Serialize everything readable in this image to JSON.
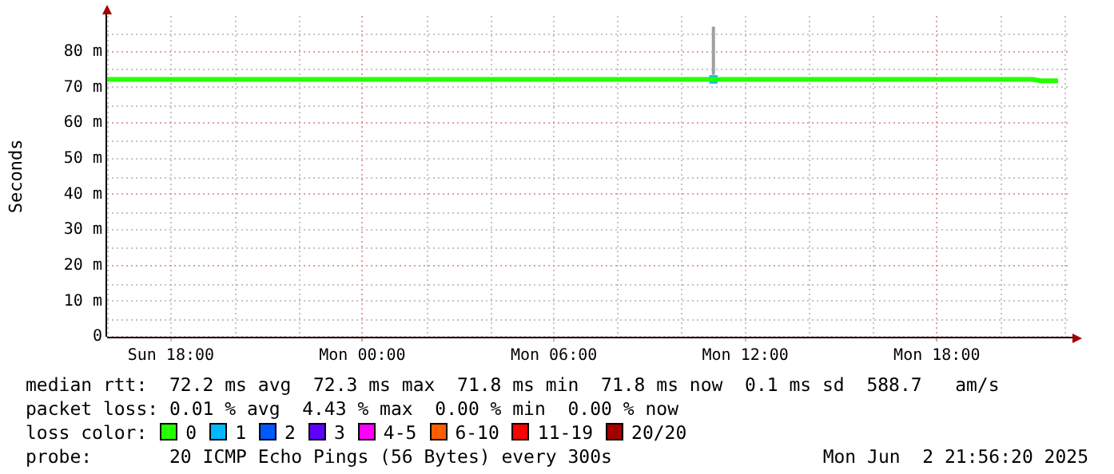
{
  "chart_data": {
    "type": "line",
    "ylabel": "Seconds",
    "legend_title": "loss color:",
    "legend": "bottom",
    "grid": true,
    "marker": "none",
    "line_style": "solid",
    "xlim": [
      "2025-06-01T16:00",
      "2025-06-02T22:12"
    ],
    "ylim": [
      0,
      90
    ],
    "xticks": [
      {
        "value": "2025-06-01T16:00",
        "label": null
      },
      {
        "value": "2025-06-01T18:00",
        "label": "Sun 18:00"
      },
      {
        "value": "2025-06-01T20:00",
        "label": null
      },
      {
        "value": "2025-06-01T22:00",
        "label": null
      },
      {
        "value": "2025-06-02T00:00",
        "label": "Mon 00:00"
      },
      {
        "value": "2025-06-02T02:00",
        "label": null
      },
      {
        "value": "2025-06-02T04:00",
        "label": null
      },
      {
        "value": "2025-06-02T06:00",
        "label": "Mon 06:00"
      },
      {
        "value": "2025-06-02T08:00",
        "label": null
      },
      {
        "value": "2025-06-02T10:00",
        "label": null
      },
      {
        "value": "2025-06-02T12:00",
        "label": "Mon 12:00"
      },
      {
        "value": "2025-06-02T14:00",
        "label": null
      },
      {
        "value": "2025-06-02T16:00",
        "label": null
      },
      {
        "value": "2025-06-02T18:00",
        "label": "Mon 18:00"
      },
      {
        "value": "2025-06-02T20:00",
        "label": null
      },
      {
        "value": "2025-06-02T22:00",
        "label": null
      }
    ],
    "yticks": [
      0,
      {
        "value": 5,
        "label": null
      },
      {
        "value": 10,
        "label": "10 m"
      },
      {
        "value": 15,
        "label": null
      },
      {
        "value": 20,
        "label": "20 m"
      },
      {
        "value": 25,
        "label": null
      },
      {
        "value": 30,
        "label": "30 m"
      },
      {
        "value": 35,
        "label": null
      },
      {
        "value": 40,
        "label": "40 m"
      },
      {
        "value": 45,
        "label": null
      },
      {
        "value": 50,
        "label": "50 m"
      },
      {
        "value": 55,
        "label": null
      },
      {
        "value": 60,
        "label": "60 m"
      },
      {
        "value": 65,
        "label": null
      },
      {
        "value": 70,
        "label": "70 m"
      },
      {
        "value": 75,
        "label": null
      },
      {
        "value": 80,
        "label": "80 m"
      },
      {
        "value": 85,
        "label": null
      }
    ],
    "series": [
      {
        "name": "0",
        "color": "#26ff00",
        "x": [
          "2025-06-01T16:00",
          "2025-06-01T17:00",
          "2025-06-01T18:00",
          "2025-06-01T19:00",
          "2025-06-01T20:00",
          "2025-06-01T21:00",
          "2025-06-01T22:00",
          "2025-06-01T23:00",
          "2025-06-02T00:00",
          "2025-06-02T01:00",
          "2025-06-02T02:00",
          "2025-06-02T03:00",
          "2025-06-02T04:00",
          "2025-06-02T05:00",
          "2025-06-02T06:00",
          "2025-06-02T07:00",
          "2025-06-02T08:00",
          "2025-06-02T09:00",
          "2025-06-02T10:00",
          "2025-06-02T11:00",
          "2025-06-02T12:00",
          "2025-06-02T13:00",
          "2025-06-02T14:00",
          "2025-06-02T15:00",
          "2025-06-02T16:00",
          "2025-06-02T17:00",
          "2025-06-02T18:00",
          "2025-06-02T19:00",
          "2025-06-02T20:00",
          "2025-06-02T21:00",
          "2025-06-02T21:15",
          "2025-06-02T21:48"
        ],
        "values": [
          72.2,
          72.2,
          72.2,
          72.2,
          72.2,
          72.2,
          72.2,
          72.2,
          72.2,
          72.2,
          72.2,
          72.2,
          72.2,
          72.2,
          72.2,
          72.2,
          72.2,
          72.2,
          72.2,
          72.2,
          72.2,
          72.2,
          72.2,
          72.2,
          72.2,
          72.2,
          72.2,
          72.2,
          72.2,
          72.2,
          71.8,
          71.8
        ]
      },
      {
        "color": "#a0a0a0",
        "x": [
          "2025-06-02T11:00",
          "2025-06-02T11:00"
        ],
        "values": [
          73.5,
          87
        ]
      },
      {
        "name": "1",
        "color": "#00b8ff",
        "marker": "square",
        "x": [
          "2025-06-02T11:00"
        ],
        "values": [
          72.2
        ]
      },
      {
        "name": "2",
        "color": "#0059ff"
      },
      {
        "name": "3",
        "color": "#5e00ff"
      },
      {
        "name": "4-5",
        "color": "#ff00ff"
      },
      {
        "name": "6-10",
        "color": "#ff5e00"
      },
      {
        "name": "11-19",
        "color": "#ff0000"
      },
      {
        "name": "20/20",
        "color": "#a10000"
      }
    ],
    "annotations": [
      "median rtt:  72.2 ms avg  72.3 ms max  71.8 ms min  71.8 ms now  0.1 ms sd  588.7   am/s",
      "packet loss: 0.01 % avg  4.43 % max  0.00 % min  0.00 % now",
      "probe:       20 ICMP Echo Pings (56 Bytes) every 300s",
      "Mon Jun  2 21:56:20 2025"
    ]
  }
}
